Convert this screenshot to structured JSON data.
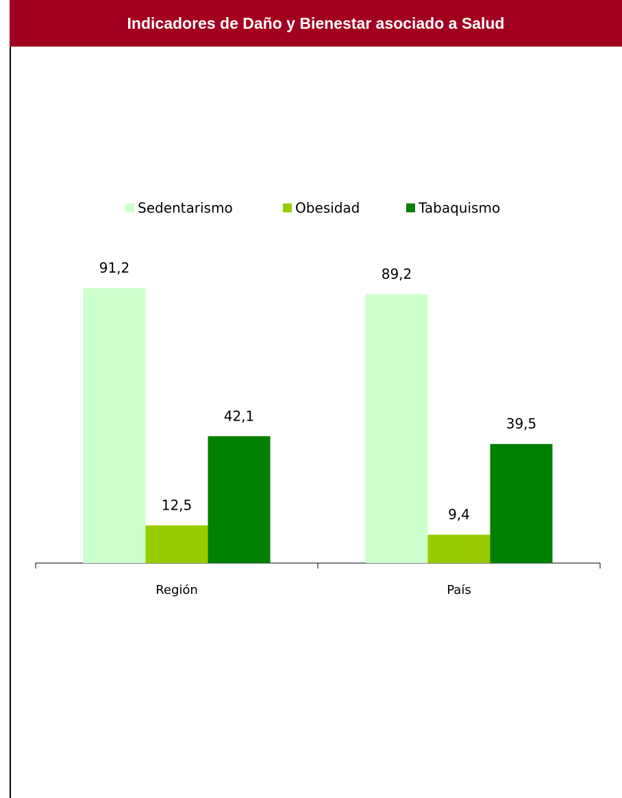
{
  "chart_data": {
    "type": "bar",
    "title": "Indicadores de Daño y Bienestar asociado a Salud",
    "categories": [
      "Región",
      "País"
    ],
    "series": [
      {
        "name": "Sedentarismo",
        "color": "#ccffcc",
        "values": [
          91.2,
          89.2
        ],
        "value_labels": [
          "91,2",
          "89,2"
        ]
      },
      {
        "name": "Obesidad",
        "color": "#99cc00",
        "values": [
          12.5,
          9.4
        ],
        "value_labels": [
          "12,5",
          "9,4"
        ]
      },
      {
        "name": "Tabaquismo",
        "color": "#008000",
        "values": [
          42.1,
          39.5
        ],
        "value_labels": [
          "42,1",
          "39,5"
        ]
      }
    ],
    "ylim": [
      0,
      100
    ],
    "legend": "top"
  }
}
